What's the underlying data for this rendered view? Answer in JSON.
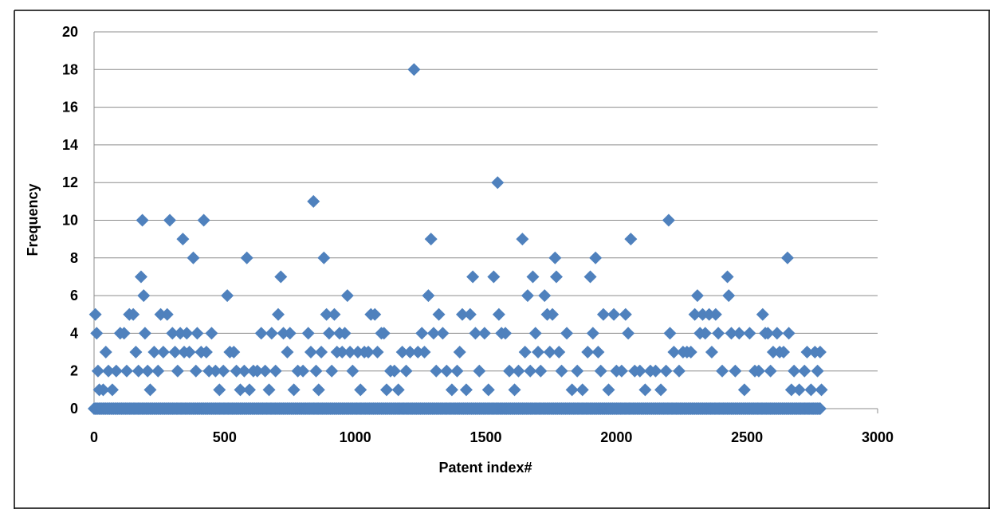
{
  "chart_data": {
    "type": "scatter",
    "title": "",
    "xlabel": "Patent index#",
    "ylabel": "Frequency",
    "xlim": [
      0,
      3000
    ],
    "ylim": [
      0,
      20
    ],
    "xticks": [
      0,
      500,
      1000,
      1500,
      2000,
      2500,
      3000
    ],
    "yticks": [
      0,
      2,
      4,
      6,
      8,
      10,
      12,
      14,
      16,
      18,
      20
    ],
    "grid": "horizontal",
    "legend": "none",
    "marker": "diamond",
    "marker_color": "#4f81bd",
    "series": [
      {
        "points": [
          [
            5,
            5
          ],
          [
            10,
            4
          ],
          [
            15,
            2
          ],
          [
            20,
            1
          ],
          [
            35,
            1
          ],
          [
            45,
            3
          ],
          [
            55,
            2
          ],
          [
            70,
            1
          ],
          [
            85,
            2
          ],
          [
            100,
            4
          ],
          [
            115,
            4
          ],
          [
            125,
            2
          ],
          [
            135,
            5
          ],
          [
            150,
            5
          ],
          [
            160,
            3
          ],
          [
            170,
            2
          ],
          [
            180,
            7
          ],
          [
            185,
            10
          ],
          [
            190,
            6
          ],
          [
            195,
            4
          ],
          [
            205,
            2
          ],
          [
            215,
            1
          ],
          [
            230,
            3
          ],
          [
            245,
            2
          ],
          [
            255,
            5
          ],
          [
            265,
            3
          ],
          [
            280,
            5
          ],
          [
            290,
            10
          ],
          [
            300,
            4
          ],
          [
            310,
            3
          ],
          [
            320,
            2
          ],
          [
            330,
            4
          ],
          [
            340,
            9
          ],
          [
            345,
            3
          ],
          [
            355,
            4
          ],
          [
            365,
            3
          ],
          [
            380,
            8
          ],
          [
            390,
            2
          ],
          [
            395,
            4
          ],
          [
            410,
            3
          ],
          [
            420,
            10
          ],
          [
            430,
            3
          ],
          [
            440,
            2
          ],
          [
            450,
            4
          ],
          [
            465,
            2
          ],
          [
            480,
            1
          ],
          [
            495,
            2
          ],
          [
            510,
            6
          ],
          [
            520,
            3
          ],
          [
            535,
            3
          ],
          [
            545,
            2
          ],
          [
            560,
            1
          ],
          [
            575,
            2
          ],
          [
            585,
            8
          ],
          [
            595,
            1
          ],
          [
            610,
            2
          ],
          [
            625,
            2
          ],
          [
            640,
            4
          ],
          [
            655,
            2
          ],
          [
            670,
            1
          ],
          [
            680,
            4
          ],
          [
            695,
            2
          ],
          [
            705,
            5
          ],
          [
            715,
            7
          ],
          [
            725,
            4
          ],
          [
            740,
            3
          ],
          [
            750,
            4
          ],
          [
            765,
            1
          ],
          [
            780,
            2
          ],
          [
            800,
            2
          ],
          [
            820,
            4
          ],
          [
            830,
            3
          ],
          [
            840,
            11
          ],
          [
            850,
            2
          ],
          [
            860,
            1
          ],
          [
            870,
            3
          ],
          [
            880,
            8
          ],
          [
            890,
            5
          ],
          [
            900,
            4
          ],
          [
            910,
            2
          ],
          [
            920,
            5
          ],
          [
            930,
            3
          ],
          [
            940,
            4
          ],
          [
            950,
            3
          ],
          [
            960,
            4
          ],
          [
            970,
            6
          ],
          [
            980,
            3
          ],
          [
            990,
            2
          ],
          [
            1010,
            3
          ],
          [
            1020,
            1
          ],
          [
            1035,
            3
          ],
          [
            1050,
            3
          ],
          [
            1060,
            5
          ],
          [
            1075,
            5
          ],
          [
            1085,
            3
          ],
          [
            1100,
            4
          ],
          [
            1110,
            4
          ],
          [
            1120,
            1
          ],
          [
            1135,
            2
          ],
          [
            1150,
            2
          ],
          [
            1165,
            1
          ],
          [
            1180,
            3
          ],
          [
            1195,
            2
          ],
          [
            1210,
            3
          ],
          [
            1225,
            18
          ],
          [
            1240,
            3
          ],
          [
            1255,
            4
          ],
          [
            1265,
            3
          ],
          [
            1280,
            6
          ],
          [
            1290,
            9
          ],
          [
            1300,
            4
          ],
          [
            1310,
            2
          ],
          [
            1320,
            5
          ],
          [
            1335,
            4
          ],
          [
            1350,
            2
          ],
          [
            1370,
            1
          ],
          [
            1390,
            2
          ],
          [
            1400,
            3
          ],
          [
            1410,
            5
          ],
          [
            1425,
            1
          ],
          [
            1440,
            5
          ],
          [
            1450,
            7
          ],
          [
            1460,
            4
          ],
          [
            1475,
            2
          ],
          [
            1495,
            4
          ],
          [
            1510,
            1
          ],
          [
            1530,
            7
          ],
          [
            1545,
            12
          ],
          [
            1550,
            5
          ],
          [
            1560,
            4
          ],
          [
            1575,
            4
          ],
          [
            1590,
            2
          ],
          [
            1610,
            1
          ],
          [
            1625,
            2
          ],
          [
            1640,
            9
          ],
          [
            1650,
            3
          ],
          [
            1660,
            6
          ],
          [
            1670,
            2
          ],
          [
            1680,
            7
          ],
          [
            1690,
            4
          ],
          [
            1700,
            3
          ],
          [
            1710,
            2
          ],
          [
            1725,
            6
          ],
          [
            1735,
            5
          ],
          [
            1745,
            3
          ],
          [
            1755,
            5
          ],
          [
            1765,
            8
          ],
          [
            1770,
            7
          ],
          [
            1780,
            3
          ],
          [
            1790,
            2
          ],
          [
            1810,
            4
          ],
          [
            1830,
            1
          ],
          [
            1850,
            2
          ],
          [
            1870,
            1
          ],
          [
            1890,
            3
          ],
          [
            1900,
            7
          ],
          [
            1910,
            4
          ],
          [
            1920,
            8
          ],
          [
            1930,
            3
          ],
          [
            1940,
            2
          ],
          [
            1950,
            5
          ],
          [
            1970,
            1
          ],
          [
            1990,
            5
          ],
          [
            2000,
            2
          ],
          [
            2020,
            2
          ],
          [
            2035,
            5
          ],
          [
            2045,
            4
          ],
          [
            2055,
            9
          ],
          [
            2070,
            2
          ],
          [
            2090,
            2
          ],
          [
            2110,
            1
          ],
          [
            2130,
            2
          ],
          [
            2150,
            2
          ],
          [
            2170,
            1
          ],
          [
            2190,
            2
          ],
          [
            2200,
            10
          ],
          [
            2205,
            4
          ],
          [
            2220,
            3
          ],
          [
            2240,
            2
          ],
          [
            2255,
            3
          ],
          [
            2270,
            3
          ],
          [
            2285,
            3
          ],
          [
            2300,
            5
          ],
          [
            2310,
            6
          ],
          [
            2320,
            4
          ],
          [
            2330,
            5
          ],
          [
            2340,
            4
          ],
          [
            2355,
            5
          ],
          [
            2365,
            3
          ],
          [
            2380,
            5
          ],
          [
            2390,
            4
          ],
          [
            2405,
            2
          ],
          [
            2425,
            7
          ],
          [
            2430,
            6
          ],
          [
            2440,
            4
          ],
          [
            2455,
            2
          ],
          [
            2470,
            4
          ],
          [
            2490,
            1
          ],
          [
            2510,
            4
          ],
          [
            2530,
            2
          ],
          [
            2545,
            2
          ],
          [
            2560,
            5
          ],
          [
            2570,
            4
          ],
          [
            2580,
            4
          ],
          [
            2590,
            2
          ],
          [
            2600,
            3
          ],
          [
            2615,
            4
          ],
          [
            2625,
            3
          ],
          [
            2640,
            3
          ],
          [
            2655,
            8
          ],
          [
            2660,
            4
          ],
          [
            2670,
            1
          ],
          [
            2680,
            2
          ],
          [
            2700,
            1
          ],
          [
            2720,
            2
          ],
          [
            2730,
            3
          ],
          [
            2745,
            1
          ],
          [
            2760,
            3
          ],
          [
            2770,
            2
          ],
          [
            2780,
            3
          ],
          [
            2785,
            1
          ]
        ]
      }
    ]
  }
}
